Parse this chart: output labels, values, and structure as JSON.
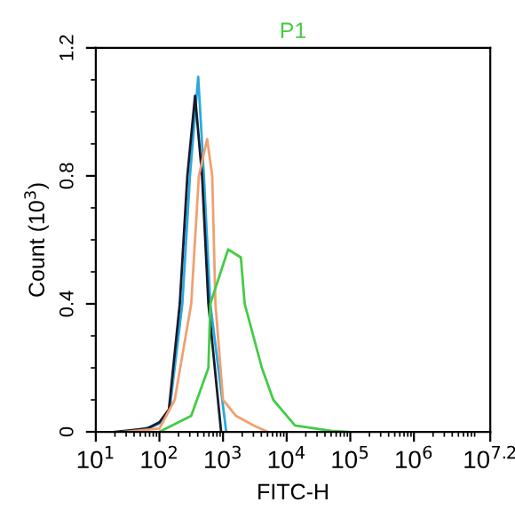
{
  "chart_data": {
    "type": "line",
    "xlabel": "FITC-H",
    "ylabel": "Count (10$^{3}$)",
    "log": "x",
    "grid": false,
    "legend": false,
    "xlim": [
      10,
      15848932
    ],
    "xticks": [
      {
        "value": 10,
        "label": "10$^{1}$"
      },
      {
        "value": 100,
        "label": "10$^{2}$"
      },
      {
        "value": 1000,
        "label": "10$^{3}$"
      },
      {
        "value": 10000,
        "label": "10$^{4}$"
      },
      {
        "value": 100000,
        "label": "10$^{5}$"
      },
      {
        "value": 1000000,
        "label": "10$^{6}$"
      },
      {
        "value": 15848932,
        "label": "10$^{7.2}$"
      }
    ],
    "ylim": [
      0,
      1.2
    ],
    "yticks": [
      0,
      0.4,
      0.8,
      1.2
    ],
    "series": [
      {
        "color": "#29a9e0",
        "x": [
          30,
          75,
          110,
          145,
          229,
          302,
          407,
          500,
          630,
          1122
        ],
        "values": [
          0,
          0.015,
          0.03,
          0.07,
          0.4,
          0.8,
          1.11,
          0.8,
          0.4,
          0
        ]
      },
      {
        "color": "#1a1a2e",
        "x": [
          20,
          63,
          100,
          141,
          209,
          275,
          363,
          468,
          589,
          933
        ],
        "values": [
          0,
          0.01,
          0.03,
          0.07,
          0.4,
          0.8,
          1.05,
          0.8,
          0.4,
          0
        ]
      },
      {
        "color": "#f0a070",
        "x": [
          28,
          100,
          174,
          316,
          417,
          562,
          676,
          759,
          1000,
          1600,
          3000,
          5012
        ],
        "values": [
          0,
          0.01,
          0.1,
          0.4,
          0.8,
          0.915,
          0.8,
          0.4,
          0.1,
          0.05,
          0.02,
          0
        ]
      },
      {
        "name": "P1",
        "color": "#44cc44",
        "x": [
          100,
          316,
          589,
          631,
          1202,
          1905,
          2188,
          4074,
          6166,
          13490,
          50119,
          93325
        ],
        "values": [
          0,
          0.05,
          0.2,
          0.4,
          0.57,
          0.545,
          0.4,
          0.2,
          0.1,
          0.02,
          0.003,
          0
        ]
      }
    ]
  }
}
